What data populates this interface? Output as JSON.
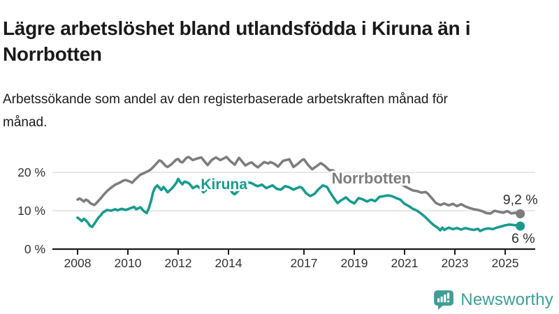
{
  "header": {
    "title": "Lägre arbetslöshet bland utlandsfödda i Kiruna än i Norrbotten",
    "subtitle": "Arbetssökande som andel av den registerbaserade arbetskraften månad för månad."
  },
  "brand": {
    "name": "Newsworthy",
    "color": "#3f9e96",
    "icon": "newsworthy-speech-bubble-chart-icon"
  },
  "chart_data": {
    "type": "line",
    "title": "Lägre arbetslöshet bland utlandsfödda i Kiruna än i Norrbotten",
    "subtitle": "Arbetssökande som andel av den registerbaserade arbetskraften månad för månad.",
    "xlabel": "",
    "ylabel": "",
    "grid": "horizontal-only",
    "colors": {
      "axis": "#1a1a1a",
      "gridline": "#e0e0e0",
      "tick_text": "#333333",
      "value_label_text": "#2f2f2f"
    },
    "y_ticks": [
      {
        "v": 0,
        "label": "0 %"
      },
      {
        "v": 10,
        "label": "10 %"
      },
      {
        "v": 20,
        "label": "20 %"
      }
    ],
    "x_ticks": [
      {
        "x": 2008,
        "label": "2008"
      },
      {
        "x": 2010,
        "label": "2010"
      },
      {
        "x": 2012,
        "label": "2012"
      },
      {
        "x": 2014,
        "label": "2014"
      },
      {
        "x": 2017,
        "label": "2017"
      },
      {
        "x": 2019,
        "label": "2019"
      },
      {
        "x": 2021,
        "label": "2021"
      },
      {
        "x": 2023,
        "label": "2023"
      },
      {
        "x": 2025,
        "label": "2025"
      }
    ],
    "x_range": [
      2007.8,
      2026.2
    ],
    "y_range": [
      0,
      26.5
    ],
    "series": [
      {
        "name": "Norrbotten",
        "color": "#7d7d81",
        "end_label": "9,2 %",
        "end_value": 9.2,
        "end_label_pos": "above",
        "label_at": {
          "x": 2018.1,
          "y": 17.1,
          "size": 22
        },
        "points": [
          [
            2008.0,
            12.9
          ],
          [
            2008.08,
            13.2
          ],
          [
            2008.17,
            12.8
          ],
          [
            2008.25,
            12.4
          ],
          [
            2008.33,
            12.9
          ],
          [
            2008.42,
            12.6
          ],
          [
            2008.5,
            12.0
          ],
          [
            2008.58,
            11.7
          ],
          [
            2008.67,
            11.5
          ],
          [
            2008.75,
            12.0
          ],
          [
            2008.83,
            12.6
          ],
          [
            2008.92,
            13.2
          ],
          [
            2009.0,
            13.9
          ],
          [
            2009.17,
            15.1
          ],
          [
            2009.33,
            16.0
          ],
          [
            2009.5,
            16.8
          ],
          [
            2009.67,
            17.3
          ],
          [
            2009.83,
            17.9
          ],
          [
            2009.92,
            18.0
          ],
          [
            2010.08,
            17.6
          ],
          [
            2010.17,
            17.3
          ],
          [
            2010.33,
            18.4
          ],
          [
            2010.5,
            19.4
          ],
          [
            2010.67,
            19.9
          ],
          [
            2010.83,
            20.4
          ],
          [
            2010.92,
            20.8
          ],
          [
            2011.08,
            21.9
          ],
          [
            2011.25,
            23.1
          ],
          [
            2011.33,
            22.9
          ],
          [
            2011.5,
            21.7
          ],
          [
            2011.58,
            21.4
          ],
          [
            2011.75,
            22.2
          ],
          [
            2011.92,
            23.3
          ],
          [
            2012.0,
            23.5
          ],
          [
            2012.08,
            22.8
          ],
          [
            2012.17,
            22.6
          ],
          [
            2012.33,
            23.8
          ],
          [
            2012.42,
            24.0
          ],
          [
            2012.58,
            23.2
          ],
          [
            2012.75,
            23.6
          ],
          [
            2012.92,
            23.9
          ],
          [
            2013.08,
            22.6
          ],
          [
            2013.17,
            21.9
          ],
          [
            2013.33,
            23.2
          ],
          [
            2013.5,
            23.9
          ],
          [
            2013.67,
            23.2
          ],
          [
            2013.83,
            23.7
          ],
          [
            2013.92,
            24.0
          ],
          [
            2014.08,
            22.9
          ],
          [
            2014.25,
            22.0
          ],
          [
            2014.42,
            23.8
          ],
          [
            2014.58,
            22.5
          ],
          [
            2014.67,
            21.8
          ],
          [
            2014.83,
            22.4
          ],
          [
            2014.92,
            22.6
          ],
          [
            2015.08,
            21.7
          ],
          [
            2015.17,
            21.3
          ],
          [
            2015.33,
            22.2
          ],
          [
            2015.42,
            22.7
          ],
          [
            2015.58,
            22.3
          ],
          [
            2015.67,
            22.7
          ],
          [
            2015.83,
            22.2
          ],
          [
            2015.97,
            21.5
          ],
          [
            2016.17,
            23.0
          ],
          [
            2016.42,
            23.4
          ],
          [
            2016.58,
            21.4
          ],
          [
            2016.75,
            22.2
          ],
          [
            2016.92,
            23.2
          ],
          [
            2017.0,
            23.4
          ],
          [
            2017.17,
            21.9
          ],
          [
            2017.33,
            20.8
          ],
          [
            2017.5,
            21.6
          ],
          [
            2017.67,
            22.4
          ],
          [
            2017.83,
            21.7
          ],
          [
            2018.0,
            20.6
          ],
          [
            2018.17,
            20.5
          ],
          [
            2018.33,
            19.7
          ],
          [
            2018.5,
            19.3
          ],
          [
            2018.67,
            18.9
          ],
          [
            2018.83,
            18.5
          ],
          [
            2019.0,
            18.1
          ],
          [
            2019.17,
            17.8
          ],
          [
            2019.33,
            17.6
          ],
          [
            2019.5,
            17.3
          ],
          [
            2019.67,
            17.5
          ],
          [
            2019.83,
            17.2
          ],
          [
            2020.0,
            17.4
          ],
          [
            2020.17,
            17.8
          ],
          [
            2020.33,
            18.2
          ],
          [
            2020.5,
            18.4
          ],
          [
            2020.67,
            17.9
          ],
          [
            2020.83,
            17.2
          ],
          [
            2021.0,
            16.4
          ],
          [
            2021.17,
            15.8
          ],
          [
            2021.33,
            15.3
          ],
          [
            2021.5,
            15.1
          ],
          [
            2021.67,
            14.7
          ],
          [
            2021.83,
            14.9
          ],
          [
            2021.92,
            14.5
          ],
          [
            2022.08,
            13.3
          ],
          [
            2022.25,
            12.0
          ],
          [
            2022.42,
            11.5
          ],
          [
            2022.58,
            11.9
          ],
          [
            2022.75,
            11.4
          ],
          [
            2022.92,
            11.8
          ],
          [
            2023.08,
            11.2
          ],
          [
            2023.25,
            11.7
          ],
          [
            2023.42,
            11.1
          ],
          [
            2023.58,
            10.7
          ],
          [
            2023.75,
            10.4
          ],
          [
            2023.92,
            10.2
          ],
          [
            2024.08,
            9.9
          ],
          [
            2024.25,
            9.4
          ],
          [
            2024.42,
            9.3
          ],
          [
            2024.58,
            10.0
          ],
          [
            2024.75,
            9.7
          ],
          [
            2024.92,
            9.5
          ],
          [
            2025.08,
            9.9
          ],
          [
            2025.25,
            9.3
          ],
          [
            2025.42,
            9.5
          ],
          [
            2025.6,
            9.2
          ]
        ]
      },
      {
        "name": "Kiruna",
        "color": "#189b8e",
        "end_label": "6 %",
        "end_value": 6.0,
        "end_label_pos": "below",
        "label_at": {
          "x": 2012.9,
          "y": 15.6,
          "size": 21
        },
        "points": [
          [
            2008.0,
            8.2
          ],
          [
            2008.08,
            7.8
          ],
          [
            2008.17,
            7.3
          ],
          [
            2008.25,
            7.9
          ],
          [
            2008.33,
            7.5
          ],
          [
            2008.42,
            6.8
          ],
          [
            2008.5,
            6.0
          ],
          [
            2008.58,
            5.8
          ],
          [
            2008.67,
            6.6
          ],
          [
            2008.75,
            7.4
          ],
          [
            2008.83,
            8.2
          ],
          [
            2008.92,
            8.8
          ],
          [
            2009.0,
            9.5
          ],
          [
            2009.17,
            10.2
          ],
          [
            2009.33,
            10.0
          ],
          [
            2009.5,
            10.4
          ],
          [
            2009.58,
            10.1
          ],
          [
            2009.75,
            10.5
          ],
          [
            2009.92,
            10.2
          ],
          [
            2010.08,
            10.6
          ],
          [
            2010.25,
            11.0
          ],
          [
            2010.33,
            10.4
          ],
          [
            2010.5,
            10.9
          ],
          [
            2010.58,
            10.3
          ],
          [
            2010.67,
            9.7
          ],
          [
            2010.75,
            9.4
          ],
          [
            2010.83,
            10.6
          ],
          [
            2010.92,
            12.5
          ],
          [
            2011.0,
            14.8
          ],
          [
            2011.08,
            16.0
          ],
          [
            2011.17,
            16.6
          ],
          [
            2011.33,
            15.4
          ],
          [
            2011.42,
            16.2
          ],
          [
            2011.58,
            14.8
          ],
          [
            2011.75,
            15.8
          ],
          [
            2011.92,
            17.2
          ],
          [
            2012.0,
            18.3
          ],
          [
            2012.08,
            17.5
          ],
          [
            2012.17,
            16.9
          ],
          [
            2012.25,
            17.6
          ],
          [
            2012.42,
            17.2
          ],
          [
            2012.5,
            16.6
          ],
          [
            2012.58,
            15.9
          ],
          [
            2012.75,
            16.5
          ],
          [
            2012.92,
            15.6
          ],
          [
            2013.0,
            14.8
          ],
          [
            2013.17,
            15.7
          ],
          [
            2013.33,
            16.6
          ],
          [
            2013.5,
            15.9
          ],
          [
            2013.58,
            16.3
          ],
          [
            2013.75,
            15.7
          ],
          [
            2013.92,
            16.4
          ],
          [
            2014.0,
            16.1
          ],
          [
            2014.17,
            14.6
          ],
          [
            2014.25,
            14.3
          ],
          [
            2014.42,
            15.4
          ],
          [
            2014.5,
            16.5
          ],
          [
            2014.67,
            17.9
          ],
          [
            2014.75,
            17.4
          ],
          [
            2014.92,
            17.2
          ],
          [
            2015.08,
            16.6
          ],
          [
            2015.17,
            16.4
          ],
          [
            2015.33,
            16.8
          ],
          [
            2015.5,
            15.9
          ],
          [
            2015.75,
            16.6
          ],
          [
            2015.92,
            15.7
          ],
          [
            2016.08,
            15.5
          ],
          [
            2016.25,
            16.4
          ],
          [
            2016.42,
            16.1
          ],
          [
            2016.58,
            15.5
          ],
          [
            2016.83,
            16.2
          ],
          [
            2016.92,
            16.0
          ],
          [
            2017.08,
            14.6
          ],
          [
            2017.25,
            13.8
          ],
          [
            2017.42,
            14.4
          ],
          [
            2017.58,
            15.6
          ],
          [
            2017.75,
            16.6
          ],
          [
            2017.92,
            16.2
          ],
          [
            2018.0,
            15.2
          ],
          [
            2018.17,
            13.5
          ],
          [
            2018.33,
            12.0
          ],
          [
            2018.5,
            12.8
          ],
          [
            2018.67,
            13.5
          ],
          [
            2018.83,
            12.5
          ],
          [
            2019.0,
            11.9
          ],
          [
            2019.17,
            13.3
          ],
          [
            2019.33,
            13.0
          ],
          [
            2019.5,
            12.4
          ],
          [
            2019.67,
            12.9
          ],
          [
            2019.83,
            12.5
          ],
          [
            2020.0,
            13.6
          ],
          [
            2020.17,
            13.8
          ],
          [
            2020.33,
            14.0
          ],
          [
            2020.5,
            13.8
          ],
          [
            2020.67,
            13.3
          ],
          [
            2020.83,
            12.9
          ],
          [
            2021.0,
            11.8
          ],
          [
            2021.17,
            11.2
          ],
          [
            2021.33,
            10.5
          ],
          [
            2021.5,
            10.0
          ],
          [
            2021.67,
            9.2
          ],
          [
            2021.83,
            8.3
          ],
          [
            2022.0,
            7.2
          ],
          [
            2022.17,
            6.2
          ],
          [
            2022.33,
            5.5
          ],
          [
            2022.42,
            4.9
          ],
          [
            2022.5,
            5.6
          ],
          [
            2022.58,
            5.0
          ],
          [
            2022.75,
            5.6
          ],
          [
            2022.92,
            5.2
          ],
          [
            2023.08,
            5.5
          ],
          [
            2023.25,
            5.1
          ],
          [
            2023.42,
            5.5
          ],
          [
            2023.58,
            5.2
          ],
          [
            2023.75,
            5.0
          ],
          [
            2023.92,
            5.3
          ],
          [
            2024.0,
            4.7
          ],
          [
            2024.17,
            5.2
          ],
          [
            2024.33,
            5.4
          ],
          [
            2024.5,
            5.2
          ],
          [
            2024.67,
            5.6
          ],
          [
            2024.83,
            5.9
          ],
          [
            2025.0,
            6.2
          ],
          [
            2025.17,
            6.4
          ],
          [
            2025.33,
            6.3
          ],
          [
            2025.6,
            6.0
          ]
        ]
      }
    ]
  }
}
